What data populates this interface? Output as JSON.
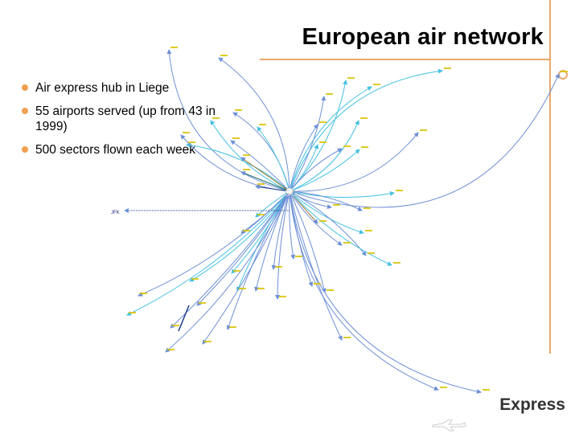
{
  "title": "European air network",
  "bullets": [
    {
      "text": "Air express hub in Liege"
    },
    {
      "text": "55 airports served (up from 43 in 1999)"
    },
    {
      "text": "500 sectors flown each week"
    }
  ],
  "hub_label": "GG",
  "jfk_label": "JFK",
  "brand": "Express",
  "colors": {
    "accent": "#e9a869",
    "bullet": "#f0a050",
    "route_main": "#6d8fd6",
    "route_light": "#45c0e0",
    "route_dark": "#1f3c8c",
    "route_teal": "#1a6b6b",
    "route_brown": "#a0742a",
    "label": "#d9c200"
  },
  "icons": {
    "bullet": "orange-dot-icon",
    "ring": "ring-icon",
    "logo": "airplane-logo-icon"
  }
}
